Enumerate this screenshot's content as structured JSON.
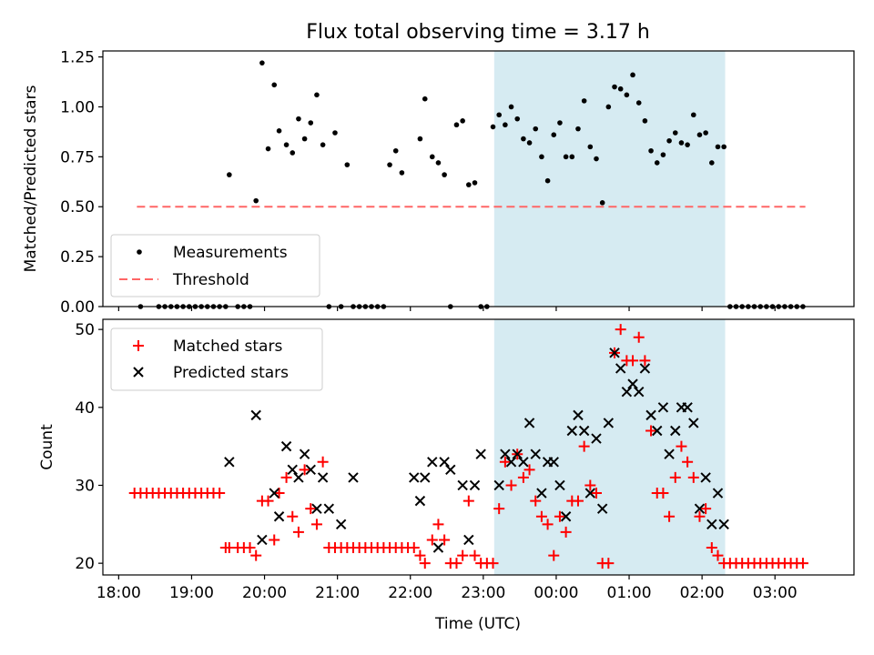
{
  "title": "Flux total observing time = 3.17 h",
  "xlabel": "Time (UTC)",
  "colors": {
    "matched": "#ff0000",
    "predicted": "#000000",
    "threshold": "#ff6666",
    "shade": "#add8e6",
    "measure": "#000000"
  },
  "chart_data": [
    {
      "type": "scatter",
      "ylabel": "Matched/Predicted stars",
      "ylim": [
        0,
        1.28
      ],
      "yticks": [
        "0.00",
        "0.25",
        "0.50",
        "0.75",
        "1.00",
        "1.25"
      ],
      "legend": {
        "position": "lower-left",
        "entries": [
          "Measurements",
          "Threshold"
        ]
      },
      "threshold": {
        "name": "Threshold",
        "y": 0.5,
        "x_range": [
          "18:15",
          "03:25"
        ]
      },
      "shaded_range": [
        "23:09",
        "02:19"
      ],
      "series": [
        {
          "name": "Measurements",
          "x": [
            "18:18",
            "18:33",
            "18:38",
            "18:43",
            "18:48",
            "18:53",
            "18:58",
            "19:03",
            "19:08",
            "19:13",
            "19:18",
            "19:23",
            "19:28",
            "19:31",
            "19:38",
            "19:43",
            "19:48",
            "19:53",
            "19:58",
            "20:03",
            "20:08",
            "20:12",
            "20:18",
            "20:23",
            "20:28",
            "20:33",
            "20:38",
            "20:43",
            "20:48",
            "20:53",
            "20:58",
            "21:03",
            "21:08",
            "21:13",
            "21:18",
            "21:23",
            "21:28",
            "21:33",
            "21:38",
            "21:43",
            "21:48",
            "21:53",
            "22:08",
            "22:12",
            "22:18",
            "22:23",
            "22:28",
            "22:33",
            "22:38",
            "22:43",
            "22:48",
            "22:53",
            "22:58",
            "23:03",
            "23:08",
            "23:13",
            "23:18",
            "23:23",
            "23:28",
            "23:33",
            "23:38",
            "23:43",
            "23:48",
            "23:53",
            "23:58",
            "00:03",
            "00:08",
            "00:13",
            "00:18",
            "00:23",
            "00:28",
            "00:33",
            "00:38",
            "00:43",
            "00:48",
            "00:53",
            "00:58",
            "01:03",
            "01:08",
            "01:13",
            "01:18",
            "01:23",
            "01:28",
            "01:33",
            "01:38",
            "01:43",
            "01:48",
            "01:53",
            "01:58",
            "02:03",
            "02:08",
            "02:13",
            "02:18",
            "02:23",
            "02:28",
            "02:33",
            "02:38",
            "02:43",
            "02:48",
            "02:53",
            "02:58",
            "03:03",
            "03:08",
            "03:13",
            "03:18",
            "03:23"
          ],
          "y": [
            0,
            0,
            0,
            0,
            0,
            0,
            0,
            0,
            0,
            0,
            0,
            0,
            0,
            0.66,
            0,
            0,
            0,
            0.53,
            1.22,
            0.79,
            1.11,
            0.88,
            0.81,
            0.77,
            0.94,
            0.84,
            0.92,
            1.06,
            0.81,
            0,
            0.87,
            0,
            0.71,
            0,
            0,
            0,
            0,
            0,
            0,
            0.71,
            0.78,
            0.67,
            0.84,
            1.04,
            0.75,
            0.72,
            0.66,
            0,
            0.91,
            0.93,
            0.61,
            0.62,
            0,
            0,
            0.9,
            0.96,
            0.91,
            1.0,
            0.94,
            0.84,
            0.82,
            0.89,
            0.75,
            0.63,
            0.86,
            0.92,
            0.75,
            0.75,
            0.89,
            1.03,
            0.8,
            0.74,
            0.52,
            1.0,
            1.1,
            1.09,
            1.06,
            1.16,
            1.02,
            0.93,
            0.78,
            0.72,
            0.76,
            0.83,
            0.87,
            0.82,
            0.81,
            0.96,
            0.86,
            0.87,
            0.72,
            0.8,
            0.8,
            0,
            0,
            0,
            0,
            0,
            0,
            0,
            0,
            0,
            0,
            0,
            0,
            0
          ]
        }
      ]
    },
    {
      "type": "scatter",
      "ylabel": "Count",
      "ylim": [
        18.5,
        51.3
      ],
      "yticks": [
        "20",
        "30",
        "40",
        "50"
      ],
      "xticks": [
        "18:00",
        "19:00",
        "20:00",
        "21:00",
        "22:00",
        "23:00",
        "00:00",
        "01:00",
        "02:00",
        "03:00"
      ],
      "legend": {
        "position": "upper-left",
        "entries": [
          "Matched stars",
          "Predicted stars"
        ]
      },
      "shaded_range": [
        "23:09",
        "02:19"
      ],
      "series": [
        {
          "name": "Matched stars",
          "x": [
            "18:13",
            "18:18",
            "18:23",
            "18:28",
            "18:33",
            "18:38",
            "18:43",
            "18:48",
            "18:53",
            "18:58",
            "19:03",
            "19:08",
            "19:13",
            "19:18",
            "19:23",
            "19:28",
            "19:31",
            "19:38",
            "19:43",
            "19:48",
            "19:53",
            "19:58",
            "20:03",
            "20:08",
            "20:12",
            "20:18",
            "20:23",
            "20:28",
            "20:33",
            "20:38",
            "20:43",
            "20:48",
            "20:53",
            "20:58",
            "21:03",
            "21:08",
            "21:13",
            "21:18",
            "21:23",
            "21:28",
            "21:33",
            "21:38",
            "21:43",
            "21:48",
            "21:53",
            "21:58",
            "22:03",
            "22:08",
            "22:12",
            "22:18",
            "22:23",
            "22:28",
            "22:33",
            "22:38",
            "22:43",
            "22:48",
            "22:53",
            "22:58",
            "23:03",
            "23:08",
            "23:13",
            "23:18",
            "23:23",
            "23:28",
            "23:33",
            "23:38",
            "23:43",
            "23:48",
            "23:53",
            "23:58",
            "00:03",
            "00:08",
            "00:13",
            "00:18",
            "00:23",
            "00:28",
            "00:33",
            "00:38",
            "00:43",
            "00:48",
            "00:53",
            "00:58",
            "01:03",
            "01:08",
            "01:13",
            "01:18",
            "01:23",
            "01:28",
            "01:33",
            "01:38",
            "01:43",
            "01:48",
            "01:53",
            "01:58",
            "02:03",
            "02:08",
            "02:13",
            "02:18",
            "02:23",
            "02:28",
            "02:33",
            "02:38",
            "02:43",
            "02:48",
            "02:53",
            "02:58",
            "03:03",
            "03:08",
            "03:13",
            "03:18",
            "03:23"
          ],
          "y": [
            29,
            29,
            29,
            29,
            29,
            29,
            29,
            29,
            29,
            29,
            29,
            29,
            29,
            29,
            29,
            22,
            22,
            22,
            22,
            22,
            21,
            28,
            28,
            23,
            29,
            31,
            26,
            24,
            32,
            27,
            25,
            33,
            22,
            22,
            22,
            22,
            22,
            22,
            22,
            22,
            22,
            22,
            22,
            22,
            22,
            22,
            22,
            21,
            20,
            23,
            25,
            23,
            20,
            20,
            21,
            28,
            21,
            20,
            20,
            20,
            27,
            33,
            30,
            34,
            31,
            32,
            28,
            26,
            25,
            21,
            26,
            24,
            28,
            28,
            35,
            30,
            29,
            20,
            20,
            47,
            50,
            46,
            46,
            49,
            46,
            37,
            29,
            29,
            26,
            31,
            35,
            33,
            31,
            26,
            27,
            22,
            21,
            20,
            20,
            20,
            20,
            20,
            20,
            20,
            20,
            20,
            20,
            20,
            20,
            20,
            20
          ]
        },
        {
          "name": "Predicted stars",
          "x": [
            "19:31",
            "19:53",
            "19:58",
            "20:08",
            "20:12",
            "20:18",
            "20:23",
            "20:28",
            "20:33",
            "20:38",
            "20:43",
            "20:48",
            "20:53",
            "21:03",
            "21:13",
            "22:03",
            "22:08",
            "22:12",
            "22:18",
            "22:23",
            "22:28",
            "22:33",
            "22:43",
            "22:48",
            "22:53",
            "22:58",
            "23:13",
            "23:18",
            "23:23",
            "23:28",
            "23:33",
            "23:38",
            "23:43",
            "23:48",
            "23:53",
            "23:58",
            "00:03",
            "00:08",
            "00:13",
            "00:18",
            "00:23",
            "00:28",
            "00:33",
            "00:38",
            "00:43",
            "00:48",
            "00:53",
            "00:58",
            "01:03",
            "01:08",
            "01:13",
            "01:18",
            "01:23",
            "01:28",
            "01:33",
            "01:38",
            "01:43",
            "01:48",
            "01:53",
            "01:58",
            "02:03",
            "02:08",
            "02:13",
            "02:18"
          ],
          "y": [
            33,
            39,
            23,
            29,
            26,
            35,
            32,
            31,
            34,
            32,
            27,
            31,
            27,
            25,
            31,
            31,
            28,
            31,
            33,
            22,
            33,
            32,
            30,
            23,
            30,
            34,
            30,
            34,
            33,
            34,
            33,
            38,
            34,
            29,
            33,
            33,
            30,
            26,
            37,
            39,
            37,
            29,
            36,
            27,
            38,
            47,
            45,
            42,
            43,
            42,
            45,
            39,
            37,
            40,
            34,
            37,
            40,
            40,
            38,
            27,
            31,
            25,
            29,
            25
          ]
        }
      ]
    }
  ]
}
